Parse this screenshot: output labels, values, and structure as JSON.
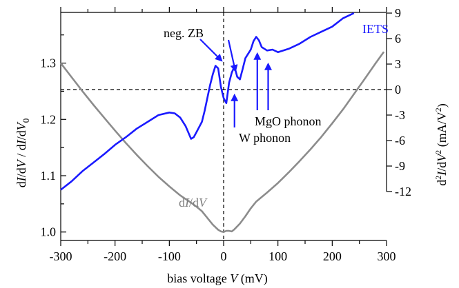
{
  "chart_data": {
    "type": "line",
    "xlabel": "bias voltage V (mV)",
    "ylabel_left": "dI/dV / dI/dV0",
    "ylabel_right": "d2I/dV2 (mA/V2)",
    "xlim": [
      -300,
      300
    ],
    "ylim_left": [
      0.985,
      1.39
    ],
    "ylim_right": [
      -12,
      9
    ],
    "x_ticks": [
      -300,
      -200,
      -100,
      0,
      100,
      200,
      300
    ],
    "x_tick_labels": [
      "-300",
      "-200",
      "-100",
      "0",
      "100",
      "200",
      "300"
    ],
    "y_left_ticks": [
      1.0,
      1.1,
      1.2,
      1.3
    ],
    "y_left_tick_labels": [
      "1.0",
      "1.1",
      "1.2",
      "1.3"
    ],
    "y_right_ticks": [
      -12,
      -9,
      -6,
      -3,
      0,
      3,
      6,
      9
    ],
    "y_right_tick_labels": [
      "-12",
      "-9",
      "-6",
      "-3",
      "0",
      "3",
      "6",
      "9"
    ],
    "grid": false,
    "reference_lines": {
      "vertical_x": 0,
      "horizontal_right_y": 0
    },
    "series": [
      {
        "name": "dI/dV",
        "axis": "left",
        "color": "#8c8c8c",
        "x": [
          -300,
          -280,
          -260,
          -240,
          -220,
          -200,
          -180,
          -160,
          -140,
          -120,
          -100,
          -80,
          -60,
          -50,
          -40,
          -30,
          -20,
          -10,
          -5,
          0,
          5,
          10,
          15,
          20,
          30,
          40,
          50,
          60,
          80,
          100,
          120,
          140,
          160,
          180,
          200,
          220,
          240,
          260,
          280,
          295
        ],
        "values": [
          1.3,
          1.275,
          1.25,
          1.226,
          1.203,
          1.18,
          1.158,
          1.137,
          1.117,
          1.098,
          1.081,
          1.065,
          1.052,
          1.045,
          1.037,
          1.025,
          1.013,
          1.004,
          1.001,
          1.0,
          1.002,
          1.002,
          1.001,
          1.005,
          1.015,
          1.028,
          1.042,
          1.054,
          1.07,
          1.087,
          1.106,
          1.126,
          1.147,
          1.169,
          1.193,
          1.218,
          1.245,
          1.272,
          1.3,
          1.32
        ]
      },
      {
        "name": "IETS",
        "axis": "right",
        "color": "#1a1aff",
        "x": [
          -300,
          -280,
          -260,
          -240,
          -220,
          -200,
          -180,
          -160,
          -140,
          -120,
          -100,
          -90,
          -80,
          -70,
          -60,
          -55,
          -50,
          -40,
          -35,
          -30,
          -25,
          -20,
          -15,
          -10,
          -5,
          0,
          5,
          10,
          15,
          20,
          25,
          30,
          35,
          40,
          50,
          55,
          60,
          65,
          70,
          80,
          90,
          100,
          120,
          140,
          160,
          180,
          200,
          220,
          240
        ],
        "values": [
          -11.8,
          -10.8,
          -9.6,
          -8.6,
          -7.6,
          -6.5,
          -5.6,
          -4.6,
          -3.8,
          -3.0,
          -2.7,
          -2.8,
          -3.3,
          -4.3,
          -5.8,
          -5.6,
          -5.0,
          -3.8,
          -2.5,
          -1.0,
          0.5,
          1.8,
          2.8,
          2.5,
          0.3,
          -1.0,
          -1.6,
          0.8,
          2.0,
          2.7,
          1.5,
          1.2,
          2.4,
          3.7,
          4.7,
          5.7,
          6.2,
          5.8,
          5.0,
          4.6,
          4.7,
          4.4,
          4.8,
          5.4,
          6.2,
          6.8,
          7.4,
          8.4,
          9.0
        ]
      }
    ],
    "annotations": [
      {
        "text": "neg. ZB"
      },
      {
        "text": "W phonon",
        "arrow_x": 20
      },
      {
        "text": "MgO phonon",
        "arrow_x": [
          62,
          82
        ]
      }
    ],
    "series_labels": [
      "IETS",
      "dI/dV"
    ]
  }
}
